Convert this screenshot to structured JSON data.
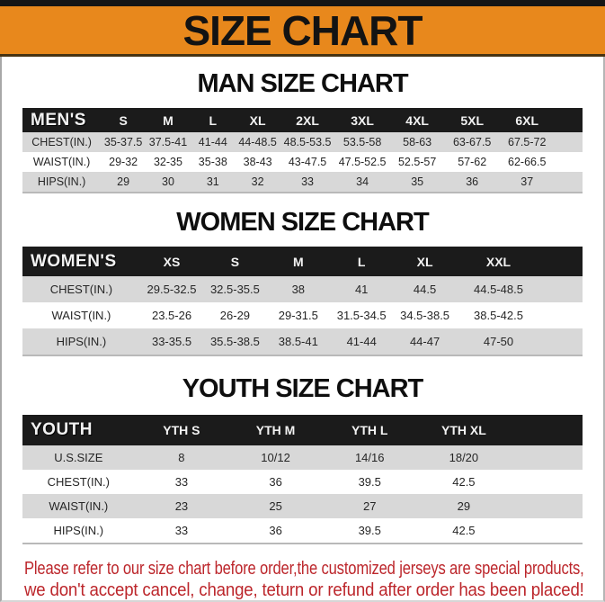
{
  "page": {
    "banner_title": "SIZE CHART",
    "colors": {
      "banner_bg": "#e8881c",
      "top_bar": "#151515",
      "table_header_bg": "#1b1b1b",
      "row_alt_bg": "#d8d8d8",
      "notice_text": "#bc262b"
    }
  },
  "sections": [
    {
      "id": "men",
      "title": "MAN SIZE CHART",
      "header": [
        "MEN'S",
        "S",
        "M",
        "L",
        "XL",
        "2XL",
        "3XL",
        "4XL",
        "5XL",
        "6XL"
      ],
      "rows": [
        {
          "label": "CHEST(IN.)",
          "values": [
            "35-37.5",
            "37.5-41",
            "41-44",
            "44-48.5",
            "48.5-53.5",
            "53.5-58",
            "58-63",
            "63-67.5",
            "67.5-72"
          ]
        },
        {
          "label": "WAIST(IN.)",
          "values": [
            "29-32",
            "32-35",
            "35-38",
            "38-43",
            "43-47.5",
            "47.5-52.5",
            "52.5-57",
            "57-62",
            "62-66.5"
          ]
        },
        {
          "label": "HIPS(IN.)",
          "values": [
            "29",
            "30",
            "31",
            "32",
            "33",
            "34",
            "35",
            "36",
            "37"
          ]
        }
      ]
    },
    {
      "id": "women",
      "title": "WOMEN SIZE CHART",
      "header": [
        "WOMEN'S",
        "XS",
        "S",
        "M",
        "L",
        "XL",
        "XXL"
      ],
      "rows": [
        {
          "label": "CHEST(IN.)",
          "values": [
            "29.5-32.5",
            "32.5-35.5",
            "38",
            "41",
            "44.5",
            "44.5-48.5"
          ]
        },
        {
          "label": "WAIST(IN.)",
          "values": [
            "23.5-26",
            "26-29",
            "29-31.5",
            "31.5-34.5",
            "34.5-38.5",
            "38.5-42.5"
          ]
        },
        {
          "label": "HIPS(IN.)",
          "values": [
            "33-35.5",
            "35.5-38.5",
            "38.5-41",
            "41-44",
            "44-47",
            "47-50"
          ]
        }
      ]
    },
    {
      "id": "youth",
      "title": "YOUTH SIZE CHART",
      "header": [
        "YOUTH",
        "YTH S",
        "YTH M",
        "YTH L",
        "YTH XL"
      ],
      "rows": [
        {
          "label": "U.S.SIZE",
          "values": [
            "8",
            "10/12",
            "14/16",
            "18/20"
          ]
        },
        {
          "label": "CHEST(IN.)",
          "values": [
            "33",
            "36",
            "39.5",
            "42.5"
          ]
        },
        {
          "label": "WAIST(IN.)",
          "values": [
            "23",
            "25",
            "27",
            "29"
          ]
        },
        {
          "label": "HIPS(IN.)",
          "values": [
            "33",
            "36",
            "39.5",
            "42.5"
          ]
        }
      ]
    }
  ],
  "footer": {
    "line1": "Please refer to our size chart before order,the customized jerseys are special products,",
    "line2": "we don't accept cancel, change, teturn or refund after order has been placed!"
  }
}
